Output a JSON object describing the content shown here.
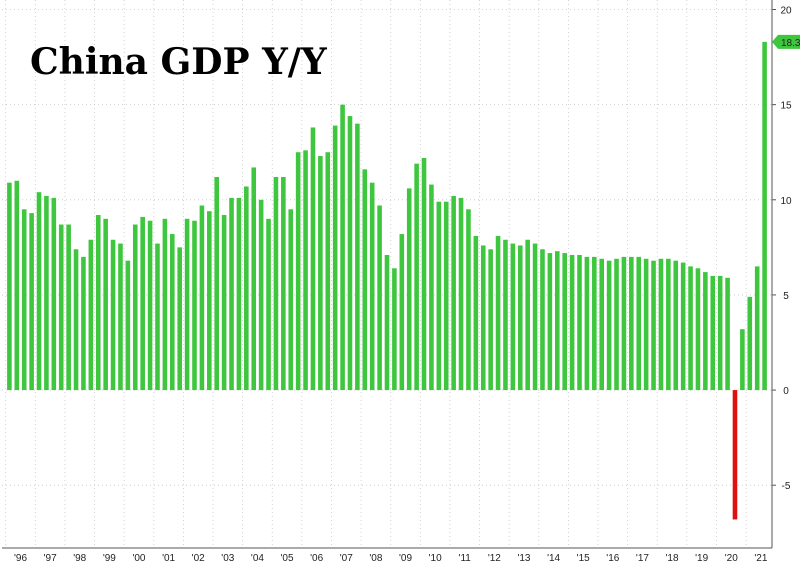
{
  "chart_data": {
    "type": "bar",
    "title": "China GDP Y/Y",
    "xlabel": "",
    "ylabel": "",
    "ylim": [
      -8.3,
      20.5
    ],
    "y_ticks": [
      -5,
      0,
      5,
      10,
      15,
      20
    ],
    "x_tick_labels": [
      "'96",
      "'97",
      "'98",
      "'99",
      "'00",
      "'01",
      "'02",
      "'03",
      "'04",
      "'05",
      "'06",
      "'07",
      "'08",
      "'09",
      "'10",
      "'11",
      "'12",
      "'13",
      "'14",
      "'15",
      "'16",
      "'17",
      "'18",
      "'19",
      "'20",
      "'21"
    ],
    "grid": true,
    "legend": "none",
    "last_value_label": "18.3",
    "colors": {
      "positive": "#3ec73e",
      "negative": "#dd1111",
      "label_bg": "#3ec73e"
    },
    "values": [
      10.9,
      11.0,
      9.5,
      9.3,
      10.4,
      10.2,
      10.1,
      8.7,
      8.7,
      7.4,
      7.0,
      7.9,
      9.2,
      9.0,
      7.9,
      7.7,
      6.8,
      8.7,
      9.1,
      8.9,
      7.7,
      9.0,
      8.2,
      7.5,
      9.0,
      8.9,
      9.7,
      9.4,
      11.2,
      9.2,
      10.1,
      10.1,
      10.7,
      11.7,
      10.0,
      9.0,
      11.2,
      11.2,
      9.5,
      12.5,
      12.6,
      13.8,
      12.3,
      12.5,
      13.9,
      15.0,
      14.4,
      14.0,
      11.6,
      10.9,
      9.7,
      7.1,
      6.4,
      8.2,
      10.6,
      11.9,
      12.2,
      10.8,
      9.9,
      9.9,
      10.2,
      10.1,
      9.5,
      8.1,
      7.6,
      7.4,
      8.1,
      7.9,
      7.7,
      7.6,
      7.9,
      7.7,
      7.4,
      7.2,
      7.3,
      7.2,
      7.1,
      7.1,
      7.0,
      7.0,
      6.9,
      6.8,
      6.9,
      7.0,
      7.0,
      7.0,
      6.9,
      6.8,
      6.9,
      6.9,
      6.8,
      6.7,
      6.5,
      6.4,
      6.2,
      6.0,
      6.0,
      5.9,
      -6.8,
      3.2,
      4.9,
      6.5,
      18.3
    ]
  }
}
